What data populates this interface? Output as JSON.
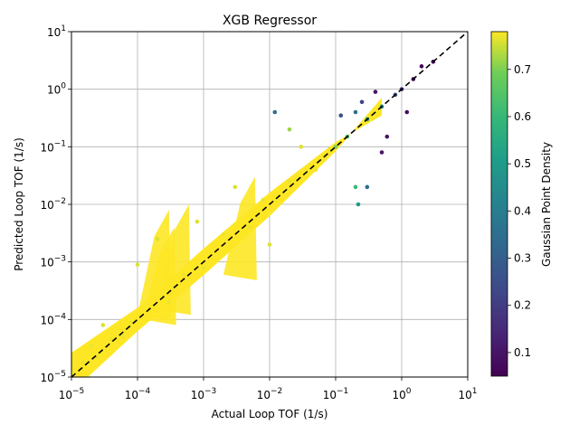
{
  "chart_data": {
    "type": "scatter",
    "title": "XGB Regressor",
    "xlabel": "Actual Loop TOF (1/s)",
    "ylabel": "Predicted Loop TOF (1/s)",
    "xscale": "log",
    "yscale": "log",
    "xlim": [
      1e-05,
      10
    ],
    "ylim": [
      1e-05,
      10
    ],
    "grid": true,
    "x_ticks": [
      {
        "base": "10",
        "exp": "−5"
      },
      {
        "base": "10",
        "exp": "−4"
      },
      {
        "base": "10",
        "exp": "−3"
      },
      {
        "base": "10",
        "exp": "−2"
      },
      {
        "base": "10",
        "exp": "−1"
      },
      {
        "base": "10",
        "exp": "0"
      },
      {
        "base": "10",
        "exp": "1"
      }
    ],
    "y_ticks": [
      {
        "base": "10",
        "exp": "−5"
      },
      {
        "base": "10",
        "exp": "−4"
      },
      {
        "base": "10",
        "exp": "−3"
      },
      {
        "base": "10",
        "exp": "−2"
      },
      {
        "base": "10",
        "exp": "−1"
      },
      {
        "base": "10",
        "exp": "0"
      },
      {
        "base": "10",
        "exp": "1"
      }
    ],
    "reference_line": {
      "style": "dashed",
      "color": "#000000",
      "from": [
        1e-05,
        1e-05
      ],
      "to": [
        10,
        10
      ]
    },
    "colorbar": {
      "label": "Gaussian Point Density",
      "colormap": "viridis",
      "range": [
        0.05,
        0.78
      ],
      "ticks": [
        "0.1",
        "0.2",
        "0.3",
        "0.4",
        "0.5",
        "0.6",
        "0.7"
      ],
      "tick_values": [
        0.1,
        0.2,
        0.3,
        0.4,
        0.5,
        0.6,
        0.7
      ]
    },
    "points": [
      {
        "x": 1.5e-05,
        "y": 1.8e-05,
        "d": 0.77
      },
      {
        "x": 2.5e-05,
        "y": 2.2e-05,
        "d": 0.77
      },
      {
        "x": 4e-05,
        "y": 4.5e-05,
        "d": 0.77
      },
      {
        "x": 6e-05,
        "y": 5e-05,
        "d": 0.77
      },
      {
        "x": 8e-05,
        "y": 9e-05,
        "d": 0.77
      },
      {
        "x": 3e-05,
        "y": 8e-05,
        "d": 0.76
      },
      {
        "x": 2e-05,
        "y": 3.5e-05,
        "d": 0.77
      },
      {
        "x": 0.0001,
        "y": 0.0009,
        "d": 0.76
      },
      {
        "x": 0.0002,
        "y": 0.0025,
        "d": 0.76
      },
      {
        "x": 0.0003,
        "y": 0.0002,
        "d": 0.77
      },
      {
        "x": 0.0005,
        "y": 0.0006,
        "d": 0.77
      },
      {
        "x": 0.0008,
        "y": 0.005,
        "d": 0.76
      },
      {
        "x": 0.001,
        "y": 0.0008,
        "d": 0.77
      },
      {
        "x": 0.002,
        "y": 0.003,
        "d": 0.77
      },
      {
        "x": 0.003,
        "y": 0.02,
        "d": 0.76
      },
      {
        "x": 0.005,
        "y": 0.004,
        "d": 0.77
      },
      {
        "x": 0.008,
        "y": 0.012,
        "d": 0.77
      },
      {
        "x": 0.01,
        "y": 0.002,
        "d": 0.76
      },
      {
        "x": 0.02,
        "y": 0.025,
        "d": 0.77
      },
      {
        "x": 0.03,
        "y": 0.1,
        "d": 0.76
      },
      {
        "x": 0.05,
        "y": 0.04,
        "d": 0.77
      },
      {
        "x": 0.08,
        "y": 0.09,
        "d": 0.77
      },
      {
        "x": 0.012,
        "y": 0.4,
        "d": 0.35
      },
      {
        "x": 0.02,
        "y": 0.2,
        "d": 0.72
      },
      {
        "x": 0.1,
        "y": 0.1,
        "d": 0.7
      },
      {
        "x": 0.15,
        "y": 0.15,
        "d": 0.62
      },
      {
        "x": 0.12,
        "y": 0.35,
        "d": 0.25
      },
      {
        "x": 0.2,
        "y": 0.4,
        "d": 0.35
      },
      {
        "x": 0.25,
        "y": 0.6,
        "d": 0.22
      },
      {
        "x": 0.2,
        "y": 0.02,
        "d": 0.6
      },
      {
        "x": 0.22,
        "y": 0.01,
        "d": 0.5
      },
      {
        "x": 0.3,
        "y": 0.02,
        "d": 0.35
      },
      {
        "x": 0.3,
        "y": 0.3,
        "d": 0.5
      },
      {
        "x": 0.5,
        "y": 0.5,
        "d": 0.45
      },
      {
        "x": 0.6,
        "y": 0.15,
        "d": 0.1
      },
      {
        "x": 0.5,
        "y": 0.08,
        "d": 0.1
      },
      {
        "x": 0.8,
        "y": 0.8,
        "d": 0.25
      },
      {
        "x": 1.0,
        "y": 1.0,
        "d": 0.15
      },
      {
        "x": 1.5,
        "y": 1.5,
        "d": 0.08
      },
      {
        "x": 2.0,
        "y": 2.5,
        "d": 0.07
      },
      {
        "x": 3.0,
        "y": 3.0,
        "d": 0.06
      },
      {
        "x": 1.2,
        "y": 0.4,
        "d": 0.08
      },
      {
        "x": 0.4,
        "y": 0.9,
        "d": 0.1
      }
    ]
  }
}
